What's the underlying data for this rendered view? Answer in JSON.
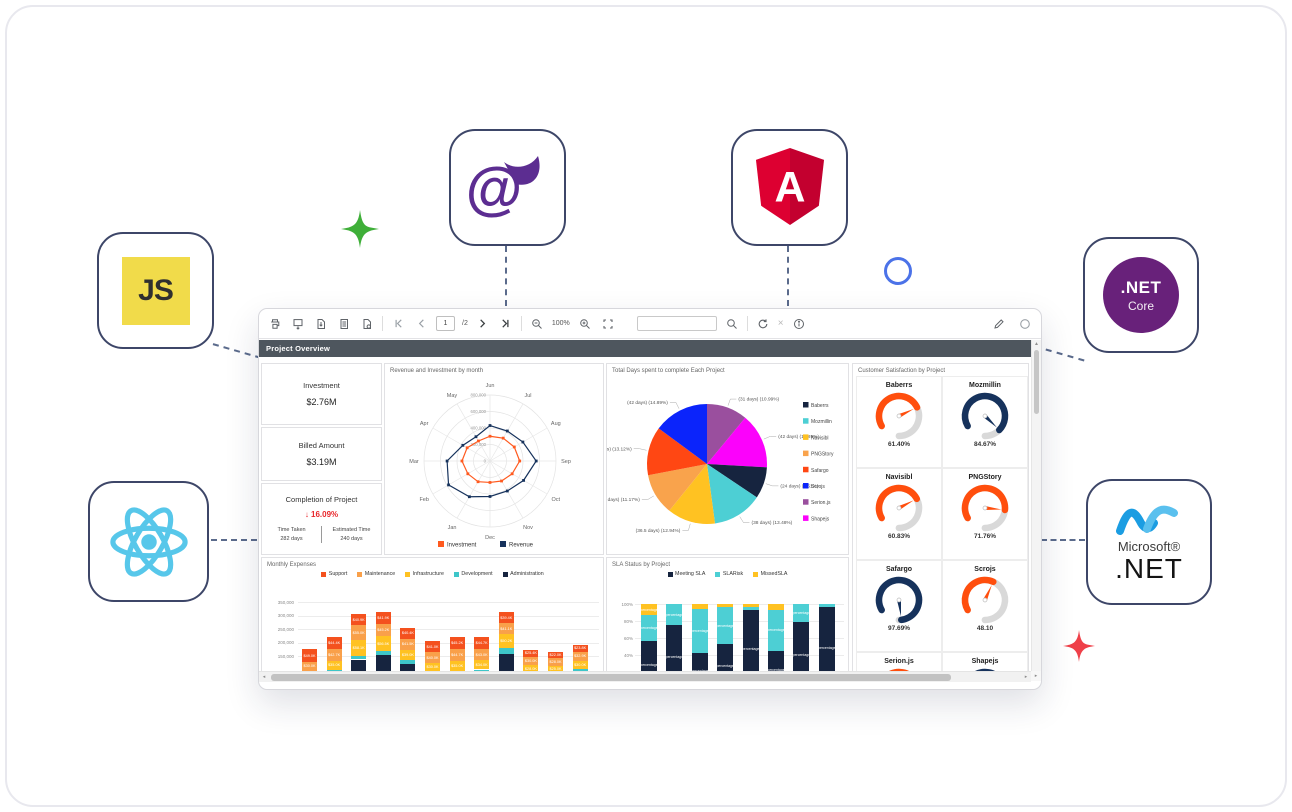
{
  "viewer": {
    "report_title": "Project Overview",
    "page_number": "1",
    "page_total": "/2",
    "zoom_level": "100%",
    "search_placeholder": ""
  },
  "logos": {
    "js": {
      "text": "JS"
    },
    "blazor": {
      "text": "@"
    },
    "angular": {
      "text": "A"
    },
    "netcore": {
      "title": ".NET",
      "subtitle": "Core"
    },
    "msnet": {
      "brand": "Microsoft®",
      "title": ".NET"
    }
  },
  "decor": {
    "star_green": "#3faf39",
    "star_red": "#ef4049",
    "ring_blue": "#4b72e8"
  },
  "report": {
    "cards": [
      {
        "label": "Investment",
        "value": "$2.76M"
      },
      {
        "label": "Billed Amount",
        "value": "$3.19M"
      },
      {
        "label": "Completion of Project",
        "value": "↓ 16.09%",
        "subs": [
          {
            "label": "Time Taken",
            "value": "282 days"
          },
          {
            "label": "Estimated Time",
            "value": "240 days"
          }
        ]
      }
    ],
    "charts": {
      "radar": {
        "type": "radar",
        "title": "Revenue and Investment by month",
        "categories": [
          "Jun",
          "Jul",
          "Aug",
          "Sep",
          "Oct",
          "Nov",
          "Dec",
          "Jan",
          "Feb",
          "Mar",
          "Apr",
          "May"
        ],
        "max": 800000,
        "ticks": [
          "0",
          "200,000",
          "400,000",
          "600,000",
          "800,000"
        ],
        "series": [
          {
            "name": "Investment",
            "color": "#ff5a1f",
            "values": [
              300000,
              320000,
              340000,
              360000,
              310000,
              280000,
              260000,
              290000,
              310000,
              340000,
              320000,
              280000
            ]
          },
          {
            "name": "Revenue",
            "color": "#16325c",
            "values": [
              430000,
              420000,
              460000,
              560000,
              470000,
              420000,
              430000,
              500000,
              580000,
              520000,
              380000,
              340000
            ]
          }
        ]
      },
      "pie": {
        "type": "pie",
        "title": "Total Days spent to complete Each Project",
        "slices": [
          {
            "name": "Serion.js",
            "days": 31,
            "pct": 10.99,
            "color": "#9a4f9e",
            "label": "(31 days) (10.99%)"
          },
          {
            "name": "Shapejs",
            "days": 42,
            "pct": 14.89,
            "color": "#fb02fb",
            "label": "(42 days) (14.89%)"
          },
          {
            "name": "Baberrs",
            "days": 24,
            "pct": 8.51,
            "color": "#16243f",
            "label": "(24 days) (8.51%)"
          },
          {
            "name": "Mozmillin",
            "days": 38,
            "pct": 13.48,
            "color": "#4dcfd4",
            "label": "(38 days) (13.48%)"
          },
          {
            "name": "Navisibl",
            "days": 36.5,
            "pct": 12.94,
            "color": "#ffc222",
            "label": "(36.5 days) (12.94%)"
          },
          {
            "name": "PNGStory",
            "days": 31.5,
            "pct": 11.17,
            "color": "#f9a34c",
            "label": "(31.5 days) (11.17%)"
          },
          {
            "name": "Safargo",
            "days": 37,
            "pct": 13.12,
            "color": "#ff4713",
            "label": "(37 days) (13.12%)"
          },
          {
            "name": "Scrojs",
            "days": 42,
            "pct": 14.89,
            "color": "#0b24fb",
            "label": "(42 days) (14.89%)"
          }
        ],
        "legend": [
          "Baberrs",
          "Mozmillin",
          "Navisibl",
          "PNGStory",
          "Safargo",
          "Scrojs",
          "Serion.js",
          "Shapejs"
        ]
      },
      "gauges": {
        "title": "Customer Satisfaction by Project",
        "items": [
          {
            "name": "Baberrs",
            "value": "61.40%",
            "pct": 61.4,
            "color": "#ff4e0d"
          },
          {
            "name": "Mozmillin",
            "value": "84.67%",
            "pct": 84.67,
            "color": "#16325c"
          },
          {
            "name": "Navisibl",
            "value": "60.83%",
            "pct": 60.83,
            "color": "#ff4e0d"
          },
          {
            "name": "PNGStory",
            "value": "71.76%",
            "pct": 71.76,
            "color": "#ff4e0d"
          },
          {
            "name": "Safargo",
            "value": "97.69%",
            "pct": 97.69,
            "color": "#16325c"
          },
          {
            "name": "Scrojs",
            "value": "48.10",
            "pct": 48.1,
            "color": "#ff4e0d"
          },
          {
            "name": "Serion.js",
            "value": "",
            "pct": 62.0,
            "color": "#ff4e0d"
          },
          {
            "name": "Shapejs",
            "value": "",
            "pct": 75.0,
            "color": "#16325c"
          }
        ]
      },
      "expenses": {
        "type": "stacked-bar",
        "title": "Monthly Expenses",
        "series": [
          {
            "name": "Support",
            "color": "#f4511e"
          },
          {
            "name": "Maintenance",
            "color": "#f9a04a"
          },
          {
            "name": "Infrastructure",
            "color": "#ffc222"
          },
          {
            "name": "Development",
            "color": "#3ec6c9"
          },
          {
            "name": "Administration",
            "color": "#16243f"
          }
        ],
        "yticks": [
          "350,000",
          "300,000",
          "250,000",
          "200,000",
          "150,000"
        ],
        "bars": [
          [
            49.0,
            30.0,
            28.1,
            10,
            58
          ],
          [
            44.4,
            42.7,
            35.0,
            12,
            86
          ],
          [
            40.9,
            55.0,
            58.1,
            14,
            137
          ],
          [
            41.9,
            45.2,
            56.5,
            16,
            152
          ],
          [
            40.4,
            41.5,
            39.0,
            12,
            122
          ],
          [
            41.0,
            40.0,
            30.0,
            10,
            84
          ],
          [
            45.2,
            44.7,
            35.0,
            12,
            83
          ],
          [
            44.7,
            43.0,
            34.0,
            14,
            86
          ],
          [
            39.4,
            41.1,
            50.2,
            22,
            159
          ],
          [
            25.4,
            30.0,
            28.0,
            10,
            79
          ],
          [
            22.0,
            28.0,
            25.0,
            9,
            79
          ],
          [
            23.8,
            32.9,
            30.0,
            11,
            92
          ]
        ]
      },
      "sla": {
        "type": "stacked-bar-100",
        "title": "SLA Status by Project",
        "series": [
          {
            "name": "Meeting SLA",
            "color": "#16243f"
          },
          {
            "name": "SLARisk",
            "color": "#4dcfd4"
          },
          {
            "name": "MissedSLA",
            "color": "#ffc222"
          }
        ],
        "yticks": [
          "100%",
          "80%",
          "60%",
          "40%"
        ],
        "segment_label": "percentage",
        "bars": [
          [
            57,
            30,
            13
          ],
          [
            75,
            25,
            0
          ],
          [
            42,
            52,
            6
          ],
          [
            53,
            43,
            4
          ],
          [
            93,
            4,
            3
          ],
          [
            45,
            48,
            7
          ],
          [
            79,
            21,
            0
          ],
          [
            97,
            3,
            0
          ]
        ]
      }
    }
  }
}
